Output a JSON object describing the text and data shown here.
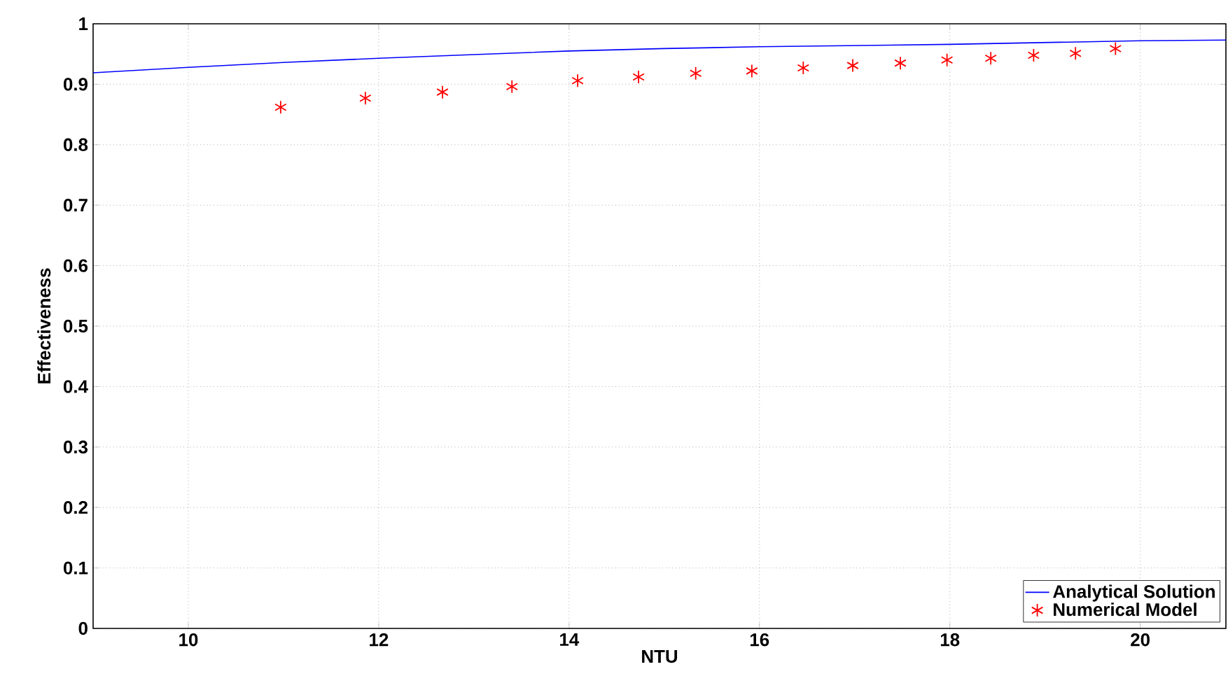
{
  "chart_data": {
    "type": "line",
    "xlabel": "NTU",
    "ylabel": "Effectiveness",
    "xlim": [
      9,
      20.9
    ],
    "ylim": [
      0,
      1
    ],
    "xticks": [
      10,
      12,
      14,
      16,
      18,
      20
    ],
    "yticks": [
      0,
      0.1,
      0.2,
      0.3,
      0.4,
      0.5,
      0.6,
      0.7,
      0.8,
      0.9,
      1
    ],
    "grid": true,
    "legend": "bottom right",
    "series": [
      {
        "name": "Analytical Solution",
        "color": "#0000ff",
        "marker": "none",
        "line_style": "solid",
        "x": [
          9,
          10,
          11,
          12,
          13,
          14,
          15,
          16,
          17,
          18,
          19,
          20,
          20.9
        ],
        "values": [
          0.919,
          0.928,
          0.936,
          0.943,
          0.949,
          0.955,
          0.959,
          0.962,
          0.964,
          0.966,
          0.969,
          0.972,
          0.973
        ]
      },
      {
        "name": "Numerical Model",
        "type": "scatter",
        "color": "#ff0000",
        "marker": "cross",
        "x": [
          10.97,
          11.86,
          12.67,
          13.4,
          14.09,
          14.73,
          15.33,
          15.92,
          16.46,
          16.98,
          17.48,
          17.97,
          18.43,
          18.88,
          19.32,
          19.74
        ],
        "values": [
          0.862,
          0.877,
          0.887,
          0.896,
          0.906,
          0.912,
          0.918,
          0.922,
          0.927,
          0.931,
          0.935,
          0.94,
          0.943,
          0.948,
          0.951,
          0.959
        ]
      }
    ]
  }
}
